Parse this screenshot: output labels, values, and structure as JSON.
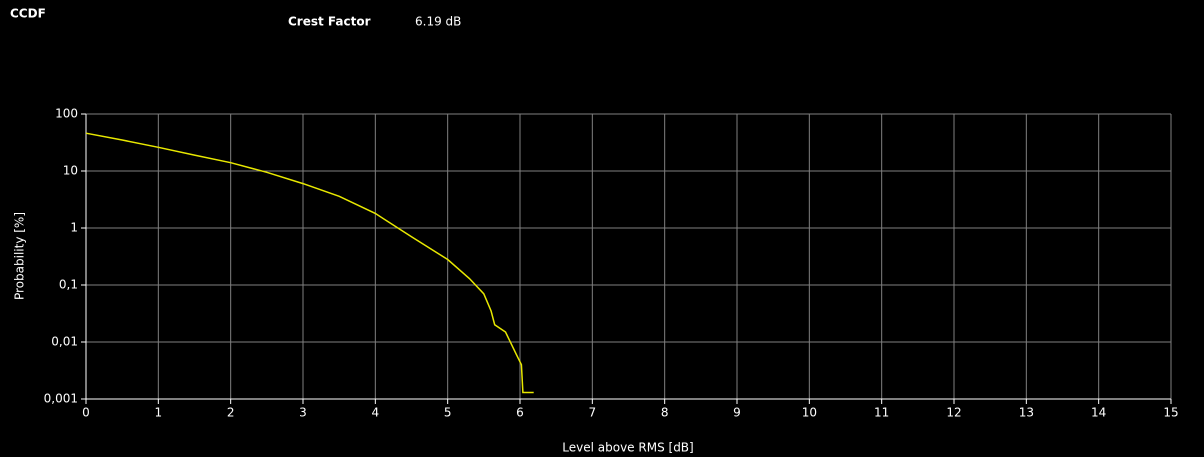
{
  "chart_data": {
    "type": "line",
    "title": "CCDF",
    "crest_factor_label": "Crest Factor",
    "crest_factor_value": "6.19 dB",
    "x_label": "Level above RMS [dB]",
    "y_label": "Probability [%]",
    "x": [
      0,
      0.5,
      1,
      1.5,
      2,
      2.5,
      3,
      3.5,
      4,
      4.5,
      5,
      5.3,
      5.5,
      5.6,
      5.65,
      5.8,
      5.95,
      6.02,
      6.04,
      6.19
    ],
    "series": [
      {
        "name": "CCDF",
        "color": "#e8e800",
        "values": [
          46,
          35,
          26,
          19,
          14,
          9.5,
          6,
          3.6,
          1.8,
          0.7,
          0.28,
          0.13,
          0.07,
          0.035,
          0.02,
          0.015,
          0.006,
          0.004,
          0.0013,
          0.0013
        ]
      }
    ],
    "xlim": [
      0,
      15
    ],
    "xticks": [
      0,
      1,
      2,
      3,
      4,
      5,
      6,
      7,
      8,
      9,
      10,
      11,
      12,
      13,
      14,
      15
    ],
    "ylim": [
      0.001,
      100
    ],
    "log_y": true,
    "yticks": [
      {
        "value": 0.001,
        "label": "0,001"
      },
      {
        "value": 0.01,
        "label": "0,01"
      },
      {
        "value": 0.1,
        "label": "0,1"
      },
      1,
      10,
      100
    ],
    "grid": true
  }
}
